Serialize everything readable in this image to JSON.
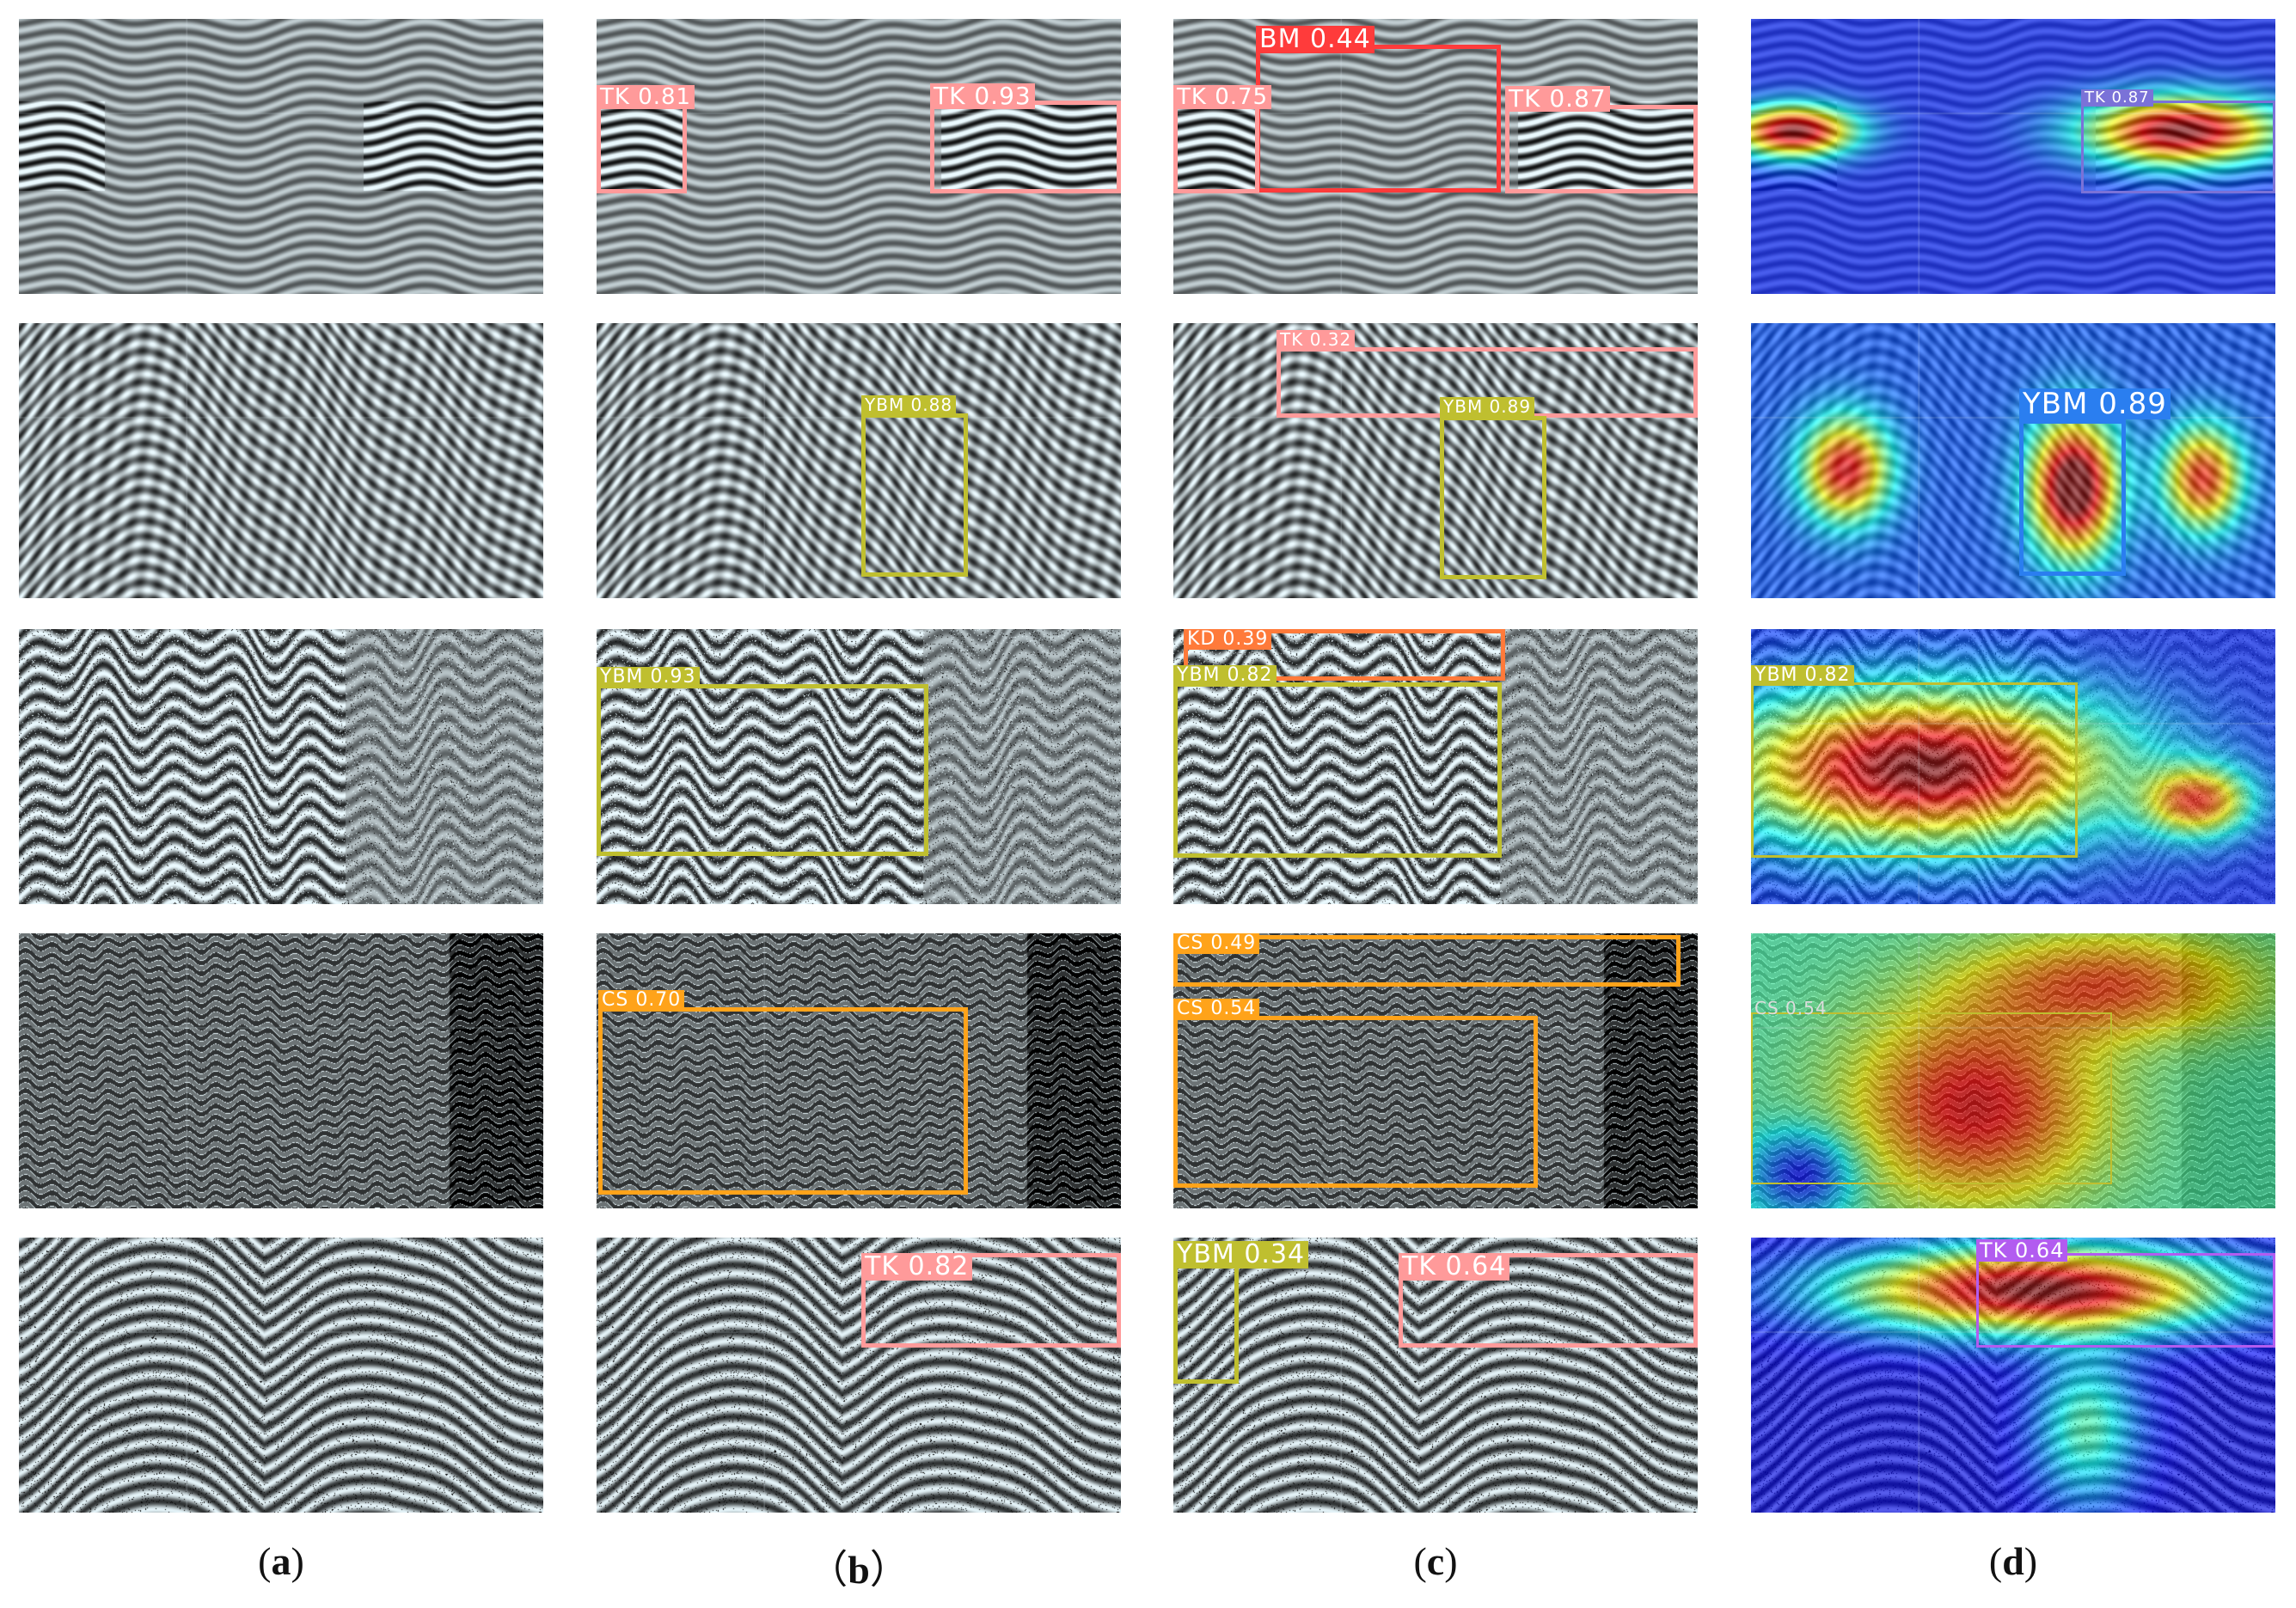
{
  "colors": {
    "TK": "#ff9a9a",
    "BM": "#ff3b3b",
    "YBM": "#bfbf2f",
    "KD": "#ff7a3a",
    "CS": "#ffa31a",
    "TK_heat": "#7a72d8",
    "YBM_heat": "#2a7ef0",
    "TK_heat5": "#b25cf0"
  },
  "columns": [
    {
      "paren_left": "(",
      "letter": "a",
      "paren_right": ")"
    },
    {
      "paren_left": "（",
      "letter": "b",
      "paren_right": "）"
    },
    {
      "paren_left": "(",
      "letter": "c",
      "paren_right": ")"
    },
    {
      "paren_left": "(",
      "letter": "d",
      "paren_right": ")"
    }
  ],
  "labels": {
    "r1b_tk1": "TK 0.81",
    "r1b_tk2": "TK 0.93",
    "r1c_bm": "BM 0.44",
    "r1c_tk1": "TK 0.75",
    "r1c_tk2": "TK 0.87",
    "r1d_tk": "TK 0.87",
    "r2b_ybm": "YBM 0.88",
    "r2c_tk": "TK 0.32",
    "r2c_ybm": "YBM 0.89",
    "r2d_ybm": "YBM 0.89",
    "r3b_ybm": "YBM 0.93",
    "r3c_kd": "KD 0.39",
    "r3c_ybm": "YBM 0.82",
    "r3d_ybm": "YBM 0.82",
    "r4b_cs": "CS 0.70",
    "r4c_cs1": "CS 0.49",
    "r4c_cs2": "CS 0.54",
    "r4d_cs": "CS 0.54",
    "r5b_tk": "TK 0.82",
    "r5c_ybm": "YBM 0.34",
    "r5c_tk": "TK 0.64",
    "r5d_tk": "TK 0.64"
  }
}
